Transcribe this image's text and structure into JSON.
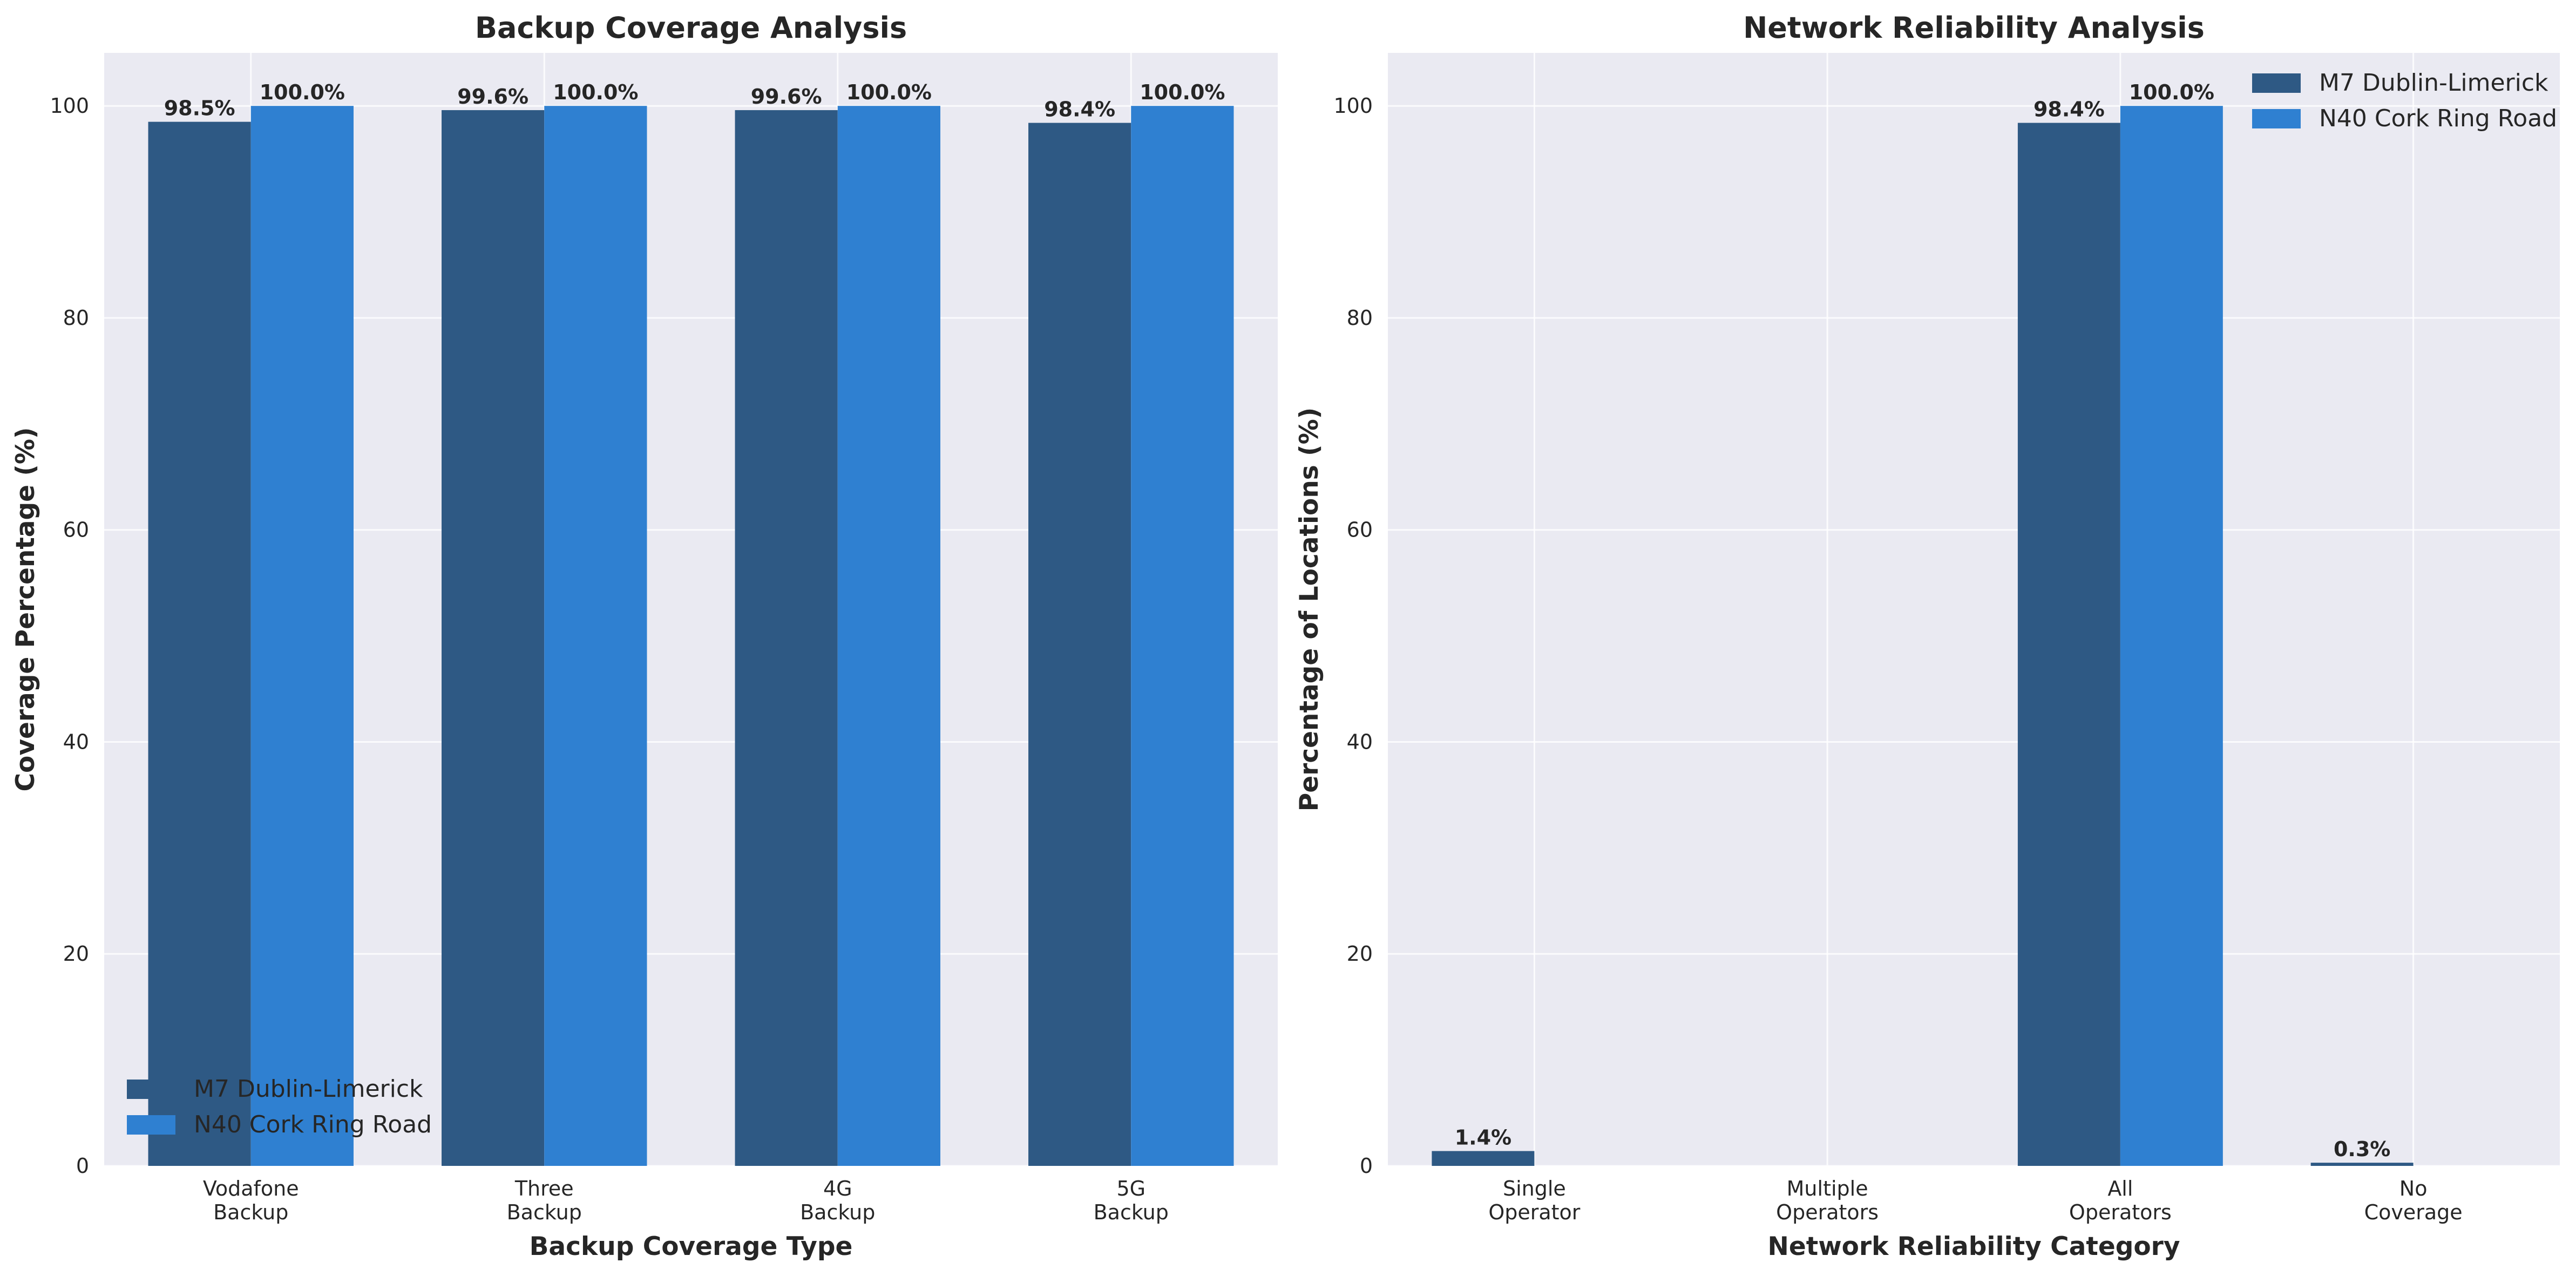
{
  "chart_data": [
    {
      "type": "bar",
      "title": "Backup Coverage Analysis",
      "xlabel": "Backup Coverage Type",
      "ylabel": "Coverage Percentage (%)",
      "categories": [
        [
          "Vodafone",
          "Backup"
        ],
        [
          "Three",
          "Backup"
        ],
        [
          "4G",
          "Backup"
        ],
        [
          "5G",
          "Backup"
        ]
      ],
      "ylim": [
        0,
        105
      ],
      "yticks": [
        0,
        20,
        40,
        60,
        80,
        100
      ],
      "grid": true,
      "legend_position": "lower-left",
      "series": [
        {
          "name": "M7 Dublin-Limerick",
          "color": "#2e5984",
          "values": [
            98.5,
            99.6,
            99.6,
            98.4
          ],
          "labels": [
            "98.5%",
            "99.6%",
            "99.6%",
            "98.4%"
          ]
        },
        {
          "name": "N40 Cork Ring Road",
          "color": "#2f80d1",
          "values": [
            100.0,
            100.0,
            100.0,
            100.0
          ],
          "labels": [
            "100.0%",
            "100.0%",
            "100.0%",
            "100.0%"
          ]
        }
      ]
    },
    {
      "type": "bar",
      "title": "Network Reliability Analysis",
      "xlabel": "Network Reliability Category",
      "ylabel": "Percentage of Locations (%)",
      "categories": [
        [
          "Single",
          "Operator"
        ],
        [
          "Multiple",
          "Operators"
        ],
        [
          "All",
          "Operators"
        ],
        [
          "No",
          "Coverage"
        ]
      ],
      "ylim": [
        0,
        105
      ],
      "yticks": [
        0,
        20,
        40,
        60,
        80,
        100
      ],
      "grid": true,
      "legend_position": "upper-right",
      "series": [
        {
          "name": "M7 Dublin-Limerick",
          "color": "#2e5984",
          "values": [
            1.4,
            0,
            98.4,
            0.3
          ],
          "labels": [
            "1.4%",
            "",
            "98.4%",
            "0.3%"
          ]
        },
        {
          "name": "N40 Cork Ring Road",
          "color": "#2f80d1",
          "values": [
            0,
            0,
            100.0,
            0
          ],
          "labels": [
            "",
            "",
            "100.0%",
            ""
          ]
        }
      ]
    }
  ]
}
